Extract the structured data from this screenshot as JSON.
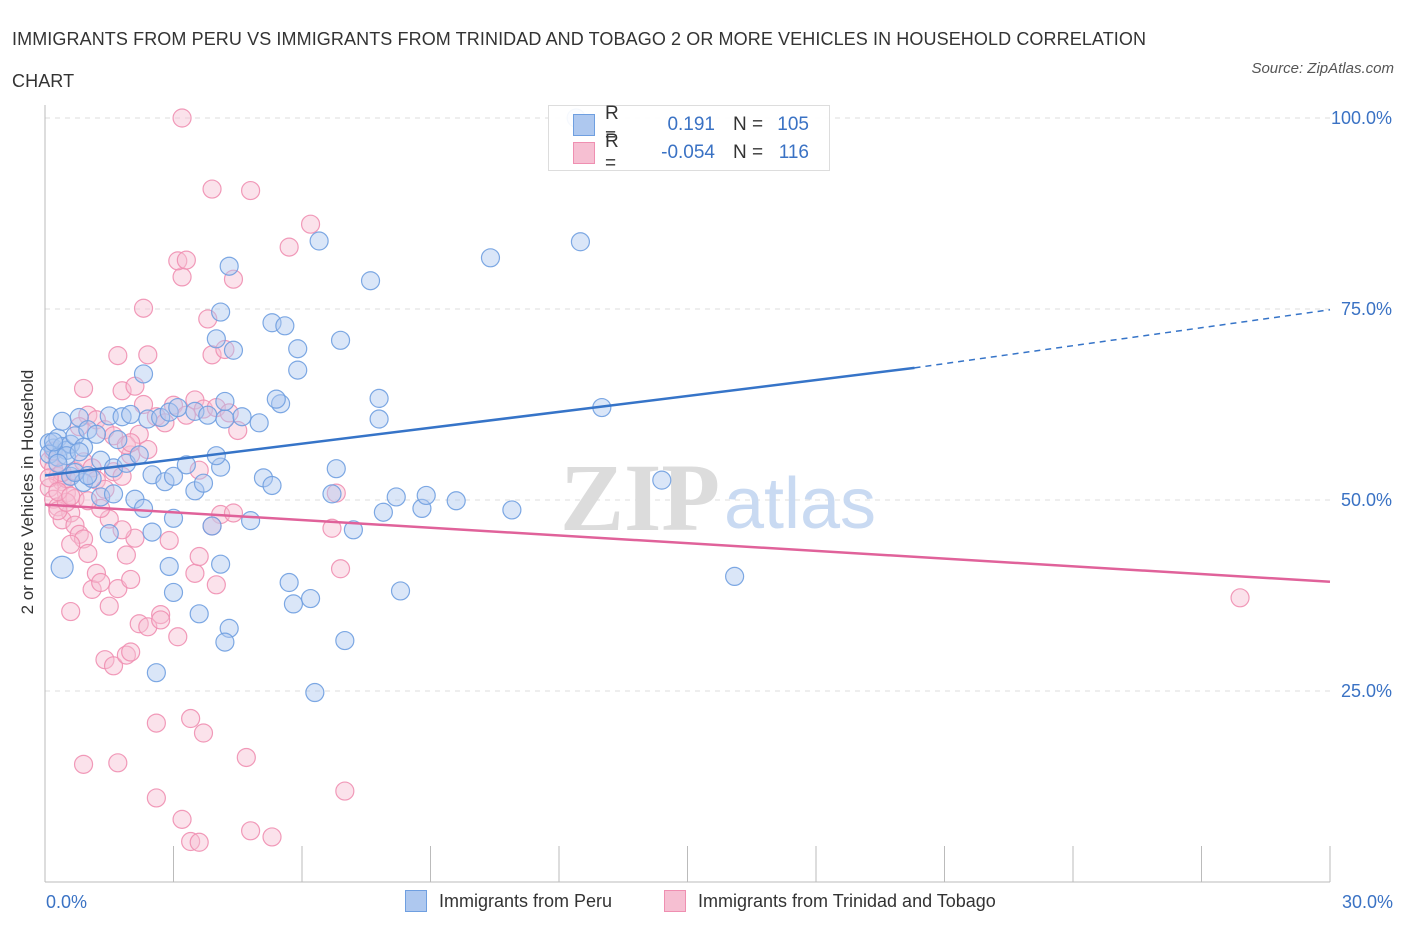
{
  "title": "IMMIGRANTS FROM PERU VS IMMIGRANTS FROM TRINIDAD AND TOBAGO 2 OR MORE VEHICLES IN HOUSEHOLD CORRELATION CHART",
  "source": "Source: ZipAtlas.com",
  "watermark": {
    "zip": "ZIP",
    "atlas": "atlas"
  },
  "legend": {
    "rows": [
      {
        "r_label": "R =",
        "r_value": "0.191",
        "n_label": "N =",
        "n_value": "105"
      },
      {
        "r_label": "R =",
        "r_value": "-0.054",
        "n_label": "N =",
        "n_value": "116"
      }
    ]
  },
  "colors": {
    "blue": "#6f9fe0",
    "blue_line": "#3674c8",
    "blue_fill": "#aec8ef",
    "pink": "#ef8fb1",
    "pink_line": "#e0629a",
    "pink_fill": "#f6bfd2",
    "axis_label": "#3a72c4",
    "grid": "#dddddd"
  },
  "chart_data": {
    "type": "scatter",
    "title": "IMMIGRANTS FROM PERU VS IMMIGRANTS FROM TRINIDAD AND TOBAGO 2 OR MORE VEHICLES IN HOUSEHOLD CORRELATION CHART",
    "xlabel": "",
    "ylabel": "2 or more Vehicles in Household",
    "xlim": [
      0,
      30
    ],
    "ylim": [
      0,
      100
    ],
    "x_tick_labels": [
      "0.0%",
      "30.0%"
    ],
    "y_tick_labels": [
      "25.0%",
      "50.0%",
      "75.0%",
      "100.0%"
    ],
    "y_ticks": [
      25,
      50,
      75,
      100
    ],
    "grid": true,
    "legend_position": "top-center",
    "series": [
      {
        "name": "Immigrants from Peru",
        "color": "#6f9fe0",
        "trend": {
          "x": [
            0,
            20.3
          ],
          "y": [
            53.2,
            67.3
          ],
          "dashed_to": [
            30,
            74.9
          ]
        },
        "points": [
          [
            0.1,
            57.5
          ],
          [
            0.2,
            56.8
          ],
          [
            0.3,
            58.1
          ],
          [
            0.4,
            57.0
          ],
          [
            0.1,
            56.0
          ],
          [
            0.5,
            56.5
          ],
          [
            0.6,
            57.3
          ],
          [
            0.3,
            55.6
          ],
          [
            0.4,
            60.3
          ],
          [
            0.8,
            60.8
          ],
          [
            0.7,
            58.4
          ],
          [
            0.9,
            56.9
          ],
          [
            1.0,
            59.2
          ],
          [
            1.2,
            58.6
          ],
          [
            1.5,
            61.0
          ],
          [
            1.8,
            60.9
          ],
          [
            2.0,
            61.2
          ],
          [
            2.4,
            60.6
          ],
          [
            2.7,
            60.8
          ],
          [
            2.9,
            61.5
          ],
          [
            3.1,
            62.1
          ],
          [
            3.5,
            61.6
          ],
          [
            3.8,
            61.1
          ],
          [
            4.2,
            60.6
          ],
          [
            4.6,
            60.9
          ],
          [
            5.0,
            60.1
          ],
          [
            5.5,
            62.6
          ],
          [
            1.3,
            55.2
          ],
          [
            1.6,
            54.2
          ],
          [
            1.9,
            54.8
          ],
          [
            2.2,
            55.9
          ],
          [
            2.5,
            53.3
          ],
          [
            2.8,
            52.4
          ],
          [
            3.0,
            53.1
          ],
          [
            3.3,
            54.6
          ],
          [
            3.5,
            51.2
          ],
          [
            3.7,
            52.2
          ],
          [
            4.1,
            54.3
          ],
          [
            0.6,
            53.1
          ],
          [
            0.9,
            52.3
          ],
          [
            1.1,
            52.8
          ],
          [
            0.5,
            55.8
          ],
          [
            1.3,
            50.4
          ],
          [
            1.6,
            50.8
          ],
          [
            2.1,
            50.1
          ],
          [
            2.3,
            48.9
          ],
          [
            2.5,
            45.8
          ],
          [
            3.0,
            47.6
          ],
          [
            3.9,
            46.6
          ],
          [
            4.8,
            47.3
          ],
          [
            5.1,
            52.9
          ],
          [
            5.3,
            51.9
          ],
          [
            6.8,
            54.1
          ],
          [
            6.7,
            50.8
          ],
          [
            7.2,
            46.1
          ],
          [
            7.9,
            48.4
          ],
          [
            8.2,
            50.4
          ],
          [
            8.8,
            48.9
          ],
          [
            8.9,
            50.6
          ],
          [
            9.6,
            49.9
          ],
          [
            10.9,
            48.7
          ],
          [
            5.7,
            39.2
          ],
          [
            5.8,
            36.4
          ],
          [
            6.2,
            37.1
          ],
          [
            7.0,
            31.6
          ],
          [
            8.3,
            38.1
          ],
          [
            4.1,
            41.6
          ],
          [
            4.3,
            33.2
          ],
          [
            4.2,
            31.4
          ],
          [
            3.6,
            35.1
          ],
          [
            3.0,
            37.9
          ],
          [
            2.9,
            41.3
          ],
          [
            2.6,
            27.4
          ],
          [
            6.3,
            24.8
          ],
          [
            1.5,
            45.6
          ],
          [
            0.4,
            41.2
          ],
          [
            2.3,
            66.5
          ],
          [
            4.0,
            71.1
          ],
          [
            4.4,
            69.6
          ],
          [
            4.1,
            74.6
          ],
          [
            5.3,
            73.2
          ],
          [
            5.6,
            72.8
          ],
          [
            5.9,
            69.8
          ],
          [
            5.9,
            67.0
          ],
          [
            6.9,
            70.9
          ],
          [
            7.8,
            63.3
          ],
          [
            7.8,
            60.6
          ],
          [
            5.4,
            63.2
          ],
          [
            4.2,
            62.9
          ],
          [
            4.3,
            80.6
          ],
          [
            6.4,
            83.9
          ],
          [
            7.6,
            78.7
          ],
          [
            10.4,
            81.7
          ],
          [
            12.5,
            83.8
          ],
          [
            13.0,
            62.1
          ],
          [
            14.4,
            52.6
          ],
          [
            16.1,
            40.0
          ],
          [
            4.0,
            55.8
          ],
          [
            1.7,
            57.9
          ],
          [
            0.8,
            56.3
          ],
          [
            0.2,
            57.6
          ],
          [
            0.3,
            54.8
          ],
          [
            0.7,
            53.6
          ],
          [
            1.0,
            53.2
          ],
          [
            12.4,
            100.0
          ]
        ]
      },
      {
        "name": "Immigrants from Trinidad and Tobago",
        "color": "#ef8fb1",
        "trend": {
          "x": [
            0,
            30
          ],
          "y": [
            49.4,
            39.3
          ]
        },
        "points": [
          [
            0.1,
            55.1
          ],
          [
            0.2,
            54.1
          ],
          [
            0.3,
            53.1
          ],
          [
            0.4,
            52.4
          ],
          [
            0.1,
            51.6
          ],
          [
            0.5,
            50.9
          ],
          [
            0.2,
            50.1
          ],
          [
            0.3,
            49.1
          ],
          [
            0.6,
            48.3
          ],
          [
            0.4,
            47.4
          ],
          [
            0.7,
            46.7
          ],
          [
            0.8,
            45.5
          ],
          [
            0.9,
            44.9
          ],
          [
            0.6,
            44.2
          ],
          [
            1.0,
            43.0
          ],
          [
            0.3,
            48.6
          ],
          [
            0.5,
            52.8
          ],
          [
            0.7,
            53.8
          ],
          [
            0.9,
            55.0
          ],
          [
            1.1,
            54.2
          ],
          [
            1.2,
            52.6
          ],
          [
            1.4,
            51.4
          ],
          [
            1.6,
            53.7
          ],
          [
            1.8,
            53.1
          ],
          [
            2.0,
            55.9
          ],
          [
            2.2,
            58.6
          ],
          [
            2.4,
            56.6
          ],
          [
            2.6,
            60.9
          ],
          [
            2.8,
            60.1
          ],
          [
            3.0,
            62.4
          ],
          [
            3.3,
            61.1
          ],
          [
            3.5,
            63.1
          ],
          [
            3.7,
            61.9
          ],
          [
            4.0,
            62.1
          ],
          [
            4.3,
            61.4
          ],
          [
            4.5,
            59.1
          ],
          [
            1.0,
            61.1
          ],
          [
            1.2,
            60.5
          ],
          [
            1.4,
            59.2
          ],
          [
            1.6,
            58.4
          ],
          [
            1.9,
            57.2
          ],
          [
            2.0,
            57.5
          ],
          [
            0.8,
            59.6
          ],
          [
            0.9,
            64.6
          ],
          [
            1.7,
            68.9
          ],
          [
            1.8,
            64.3
          ],
          [
            2.1,
            64.9
          ],
          [
            2.3,
            62.5
          ],
          [
            2.4,
            69.0
          ],
          [
            2.3,
            75.1
          ],
          [
            3.2,
            79.2
          ],
          [
            3.1,
            81.3
          ],
          [
            3.3,
            81.4
          ],
          [
            3.8,
            73.7
          ],
          [
            3.9,
            69.0
          ],
          [
            4.2,
            69.7
          ],
          [
            4.4,
            78.9
          ],
          [
            5.7,
            83.1
          ],
          [
            6.2,
            86.1
          ],
          [
            3.9,
            90.7
          ],
          [
            4.8,
            90.5
          ],
          [
            3.2,
            100.0
          ],
          [
            0.6,
            35.4
          ],
          [
            1.1,
            38.3
          ],
          [
            1.2,
            40.4
          ],
          [
            1.3,
            39.2
          ],
          [
            1.5,
            36.1
          ],
          [
            1.7,
            38.4
          ],
          [
            1.9,
            42.8
          ],
          [
            2.0,
            39.6
          ],
          [
            2.2,
            33.8
          ],
          [
            2.4,
            33.4
          ],
          [
            2.7,
            35.0
          ],
          [
            2.7,
            34.3
          ],
          [
            3.1,
            32.1
          ],
          [
            3.5,
            40.4
          ],
          [
            3.6,
            42.6
          ],
          [
            4.0,
            38.9
          ],
          [
            4.1,
            48.1
          ],
          [
            1.4,
            29.1
          ],
          [
            1.6,
            28.3
          ],
          [
            1.9,
            29.7
          ],
          [
            2.0,
            30.1
          ],
          [
            1.7,
            15.6
          ],
          [
            2.6,
            20.8
          ],
          [
            3.4,
            21.4
          ],
          [
            3.7,
            19.5
          ],
          [
            2.6,
            11.0
          ],
          [
            3.2,
            8.2
          ],
          [
            3.4,
            5.3
          ],
          [
            3.6,
            5.2
          ],
          [
            4.7,
            16.3
          ],
          [
            4.8,
            6.7
          ],
          [
            5.3,
            5.9
          ],
          [
            7.0,
            11.9
          ],
          [
            0.9,
            15.4
          ],
          [
            6.8,
            50.9
          ],
          [
            6.9,
            41.0
          ],
          [
            6.7,
            46.3
          ],
          [
            4.4,
            48.3
          ],
          [
            3.9,
            46.6
          ],
          [
            2.1,
            45.0
          ],
          [
            1.5,
            47.5
          ],
          [
            1.3,
            48.9
          ],
          [
            0.7,
            50.2
          ],
          [
            1.0,
            49.9
          ],
          [
            0.5,
            49.7
          ],
          [
            0.4,
            53.6
          ],
          [
            0.2,
            56.4
          ],
          [
            0.1,
            52.9
          ],
          [
            0.3,
            51.1
          ],
          [
            0.6,
            50.5
          ],
          [
            2.9,
            44.7
          ],
          [
            3.6,
            53.9
          ],
          [
            27.9,
            37.2
          ],
          [
            1.8,
            46.1
          ]
        ]
      }
    ]
  },
  "bottom_legend": [
    "Immigrants from Peru",
    "Immigrants from Trinidad and Tobago"
  ]
}
